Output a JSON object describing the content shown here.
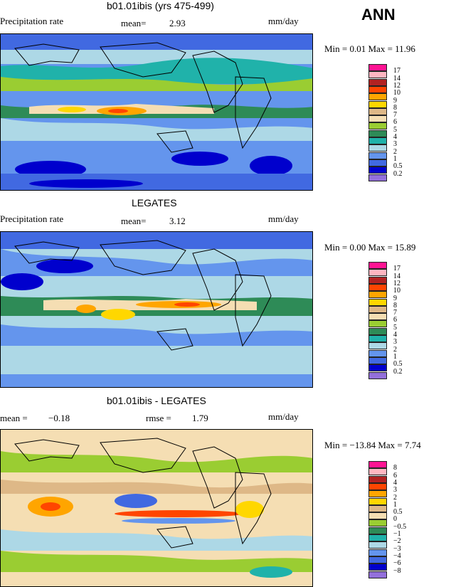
{
  "header": {
    "season": "ANN"
  },
  "colors": {
    "abs_scale": [
      "#9370db",
      "#0000cd",
      "#4169e1",
      "#6495ed",
      "#add8e6",
      "#20b2aa",
      "#2e8b57",
      "#9acd32",
      "#f5deb3",
      "#deb887",
      "#ffd700",
      "#ffa500",
      "#ff4500",
      "#b22222",
      "#ffb6c1",
      "#ff1493"
    ],
    "diff_scale": [
      "#9370db",
      "#0000cd",
      "#4169e1",
      "#6495ed",
      "#add8e6",
      "#20b2aa",
      "#2e8b57",
      "#9acd32",
      "#f5deb3",
      "#deb887",
      "#ffd700",
      "#ffa500",
      "#ff4500",
      "#b22222",
      "#ffb6c1",
      "#ff1493"
    ]
  },
  "panels": [
    {
      "title": "b01.01ibis (yrs 475-499)",
      "left_label": "Precipitation rate",
      "mean_label": "mean=",
      "mean_value": "2.93",
      "units": "mm/day",
      "minmax": "Min =    0.01 Max =   11.96",
      "colorbar_labels": [
        "17",
        "14",
        "12",
        "10",
        "9",
        "8",
        "7",
        "6",
        "5",
        "4",
        "3",
        "2",
        "1",
        "0.5",
        "0.2"
      ]
    },
    {
      "title": "LEGATES",
      "left_label": "Precipitation rate",
      "mean_label": "mean=",
      "mean_value": "3.12",
      "units": "mm/day",
      "minmax": "Min =    0.00 Max =   15.89",
      "colorbar_labels": [
        "17",
        "14",
        "12",
        "10",
        "9",
        "8",
        "7",
        "6",
        "5",
        "4",
        "3",
        "2",
        "1",
        "0.5",
        "0.2"
      ]
    },
    {
      "title": "b01.01ibis - LEGATES",
      "left_label": "mean =",
      "mean_value": "−0.18",
      "rmse_label": "rmse =",
      "rmse_value": "1.79",
      "units": "mm/day",
      "minmax": "Min = −13.84 Max =    7.74",
      "colorbar_labels": [
        "8",
        "6",
        "4",
        "3",
        "2",
        "1",
        "0.5",
        "0",
        "−0.5",
        "−1",
        "−2",
        "−3",
        "−4",
        "−6",
        "−8"
      ]
    }
  ],
  "chart_data": [
    {
      "type": "heatmap",
      "title": "b01.01ibis (yrs 475-499)",
      "variable": "Precipitation rate",
      "units": "mm/day",
      "mean": 2.93,
      "min": 0.01,
      "max": 11.96,
      "levels": [
        0.2,
        0.5,
        1,
        2,
        3,
        4,
        5,
        6,
        7,
        8,
        9,
        10,
        12,
        14,
        17
      ]
    },
    {
      "type": "heatmap",
      "title": "LEGATES",
      "variable": "Precipitation rate",
      "units": "mm/day",
      "mean": 3.12,
      "min": 0.0,
      "max": 15.89,
      "levels": [
        0.2,
        0.5,
        1,
        2,
        3,
        4,
        5,
        6,
        7,
        8,
        9,
        10,
        12,
        14,
        17
      ]
    },
    {
      "type": "heatmap",
      "title": "b01.01ibis - LEGATES",
      "units": "mm/day",
      "mean": -0.18,
      "rmse": 1.79,
      "min": -13.84,
      "max": 7.74,
      "levels": [
        -8,
        -6,
        -4,
        -3,
        -2,
        -1,
        -0.5,
        0,
        0.5,
        1,
        2,
        3,
        4,
        6,
        8
      ]
    }
  ]
}
